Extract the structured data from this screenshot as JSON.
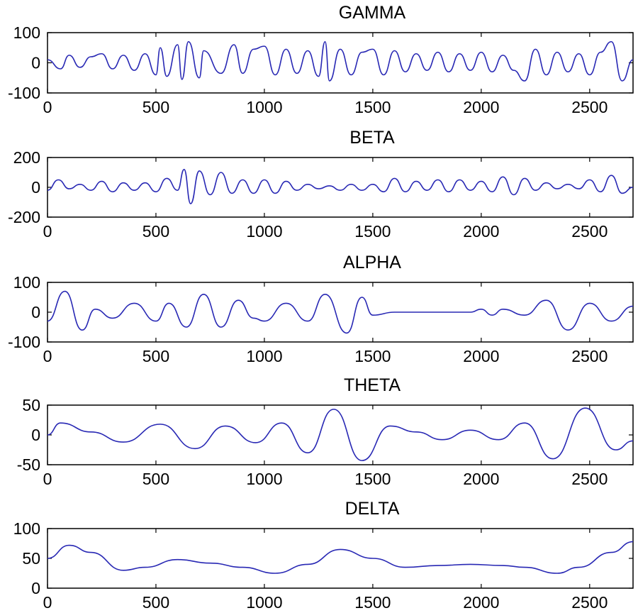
{
  "chart_data": [
    {
      "type": "line",
      "title": "GAMMA",
      "xlim": [
        0,
        2700
      ],
      "ylim": [
        -100,
        100
      ],
      "xticks": [
        "0",
        "500",
        "1000",
        "1500",
        "2000",
        "2500"
      ],
      "yticks": [
        "100",
        "0",
        "-100"
      ],
      "color": "#2828b4",
      "series": [
        {
          "x": [
            0,
            60,
            100,
            150,
            200,
            250,
            300,
            350,
            400,
            450,
            500,
            520,
            550,
            600,
            620,
            650,
            700,
            720,
            800,
            860,
            900,
            950,
            1000,
            1050,
            1100,
            1150,
            1200,
            1250,
            1280,
            1300,
            1350,
            1400,
            1450,
            1500,
            1550,
            1600,
            1650,
            1700,
            1750,
            1800,
            1850,
            1900,
            1950,
            2000,
            2050,
            2100,
            2150,
            2200,
            2250,
            2300,
            2350,
            2400,
            2450,
            2500,
            2550,
            2600,
            2650,
            2700
          ],
          "y": [
            10,
            -20,
            25,
            -15,
            20,
            30,
            -20,
            25,
            -25,
            30,
            -40,
            50,
            -45,
            60,
            -55,
            70,
            -50,
            40,
            -35,
            60,
            -35,
            45,
            55,
            -40,
            45,
            -35,
            40,
            -45,
            70,
            -60,
            45,
            -40,
            35,
            45,
            -40,
            40,
            -30,
            30,
            -25,
            35,
            -30,
            30,
            -25,
            35,
            -30,
            25,
            -25,
            -60,
            45,
            -40,
            35,
            -30,
            30,
            -40,
            35,
            70,
            -60,
            10
          ]
        }
      ]
    },
    {
      "type": "line",
      "title": "BETA",
      "xlim": [
        0,
        2700
      ],
      "ylim": [
        -200,
        200
      ],
      "xticks": [
        "0",
        "500",
        "1000",
        "1500",
        "2000",
        "2500"
      ],
      "yticks": [
        "200",
        "0",
        "-200"
      ],
      "color": "#2828b4",
      "series": [
        {
          "x": [
            0,
            50,
            100,
            150,
            200,
            250,
            300,
            350,
            400,
            450,
            500,
            550,
            600,
            630,
            660,
            700,
            750,
            800,
            850,
            900,
            950,
            1000,
            1050,
            1100,
            1150,
            1200,
            1250,
            1300,
            1350,
            1400,
            1450,
            1500,
            1550,
            1600,
            1650,
            1700,
            1750,
            1800,
            1850,
            1900,
            1950,
            2000,
            2050,
            2100,
            2150,
            2200,
            2250,
            2300,
            2350,
            2400,
            2450,
            2500,
            2550,
            2600,
            2650,
            2700
          ],
          "y": [
            -20,
            50,
            -10,
            20,
            -20,
            40,
            -30,
            30,
            -20,
            30,
            -30,
            60,
            -20,
            120,
            -110,
            110,
            -50,
            100,
            -40,
            50,
            -40,
            50,
            -40,
            40,
            -20,
            20,
            -10,
            10,
            -20,
            20,
            -20,
            20,
            -30,
            60,
            -30,
            40,
            -20,
            50,
            -30,
            50,
            -20,
            40,
            -30,
            70,
            -50,
            60,
            -20,
            30,
            -10,
            20,
            -10,
            50,
            -30,
            80,
            -40,
            0
          ]
        }
      ]
    },
    {
      "type": "line",
      "title": "ALPHA",
      "xlim": [
        0,
        2700
      ],
      "ylim": [
        -100,
        100
      ],
      "xticks": [
        "0",
        "500",
        "1000",
        "1500",
        "2000",
        "2500"
      ],
      "yticks": [
        "100",
        "0",
        "-100"
      ],
      "color": "#2828b4",
      "series": [
        {
          "x": [
            0,
            80,
            160,
            220,
            300,
            400,
            500,
            560,
            640,
            720,
            800,
            880,
            950,
            1000,
            1100,
            1200,
            1280,
            1380,
            1450,
            1500,
            1600,
            1700,
            1800,
            1900,
            1950,
            2000,
            2050,
            2100,
            2200,
            2300,
            2400,
            2500,
            2600,
            2700
          ],
          "y": [
            -30,
            70,
            -60,
            10,
            -20,
            30,
            -30,
            30,
            -50,
            60,
            -50,
            40,
            -20,
            -30,
            30,
            -30,
            60,
            -70,
            50,
            -10,
            0,
            0,
            0,
            0,
            0,
            10,
            -10,
            10,
            -10,
            40,
            -60,
            30,
            -30,
            20
          ]
        }
      ]
    },
    {
      "type": "line",
      "title": "THETA",
      "xlim": [
        0,
        2700
      ],
      "ylim": [
        -50,
        50
      ],
      "xticks": [
        "0",
        "500",
        "1000",
        "1500",
        "2000",
        "2500"
      ],
      "yticks": [
        "50",
        "0",
        "-50"
      ],
      "color": "#2828b4",
      "series": [
        {
          "x": [
            0,
            60,
            200,
            350,
            520,
            680,
            820,
            960,
            1080,
            1200,
            1320,
            1450,
            1580,
            1700,
            1820,
            1950,
            2080,
            2200,
            2330,
            2480,
            2620,
            2700
          ],
          "y": [
            0,
            20,
            5,
            -12,
            18,
            -23,
            15,
            -13,
            20,
            -30,
            43,
            -43,
            15,
            5,
            -8,
            8,
            -8,
            20,
            -40,
            45,
            -25,
            -10
          ]
        }
      ]
    },
    {
      "type": "line",
      "title": "DELTA",
      "xlim": [
        0,
        2700
      ],
      "ylim": [
        0,
        100
      ],
      "xticks": [
        "0",
        "500",
        "1000",
        "1500",
        "2000",
        "2500"
      ],
      "yticks": [
        "100",
        "50",
        "0"
      ],
      "color": "#2828b4",
      "series": [
        {
          "x": [
            0,
            100,
            200,
            350,
            450,
            600,
            750,
            900,
            1050,
            1200,
            1350,
            1500,
            1650,
            1800,
            1950,
            2100,
            2200,
            2350,
            2450,
            2600,
            2700
          ],
          "y": [
            50,
            72,
            60,
            30,
            35,
            48,
            42,
            35,
            25,
            40,
            65,
            50,
            35,
            38,
            40,
            38,
            35,
            25,
            35,
            60,
            78
          ]
        }
      ]
    }
  ]
}
